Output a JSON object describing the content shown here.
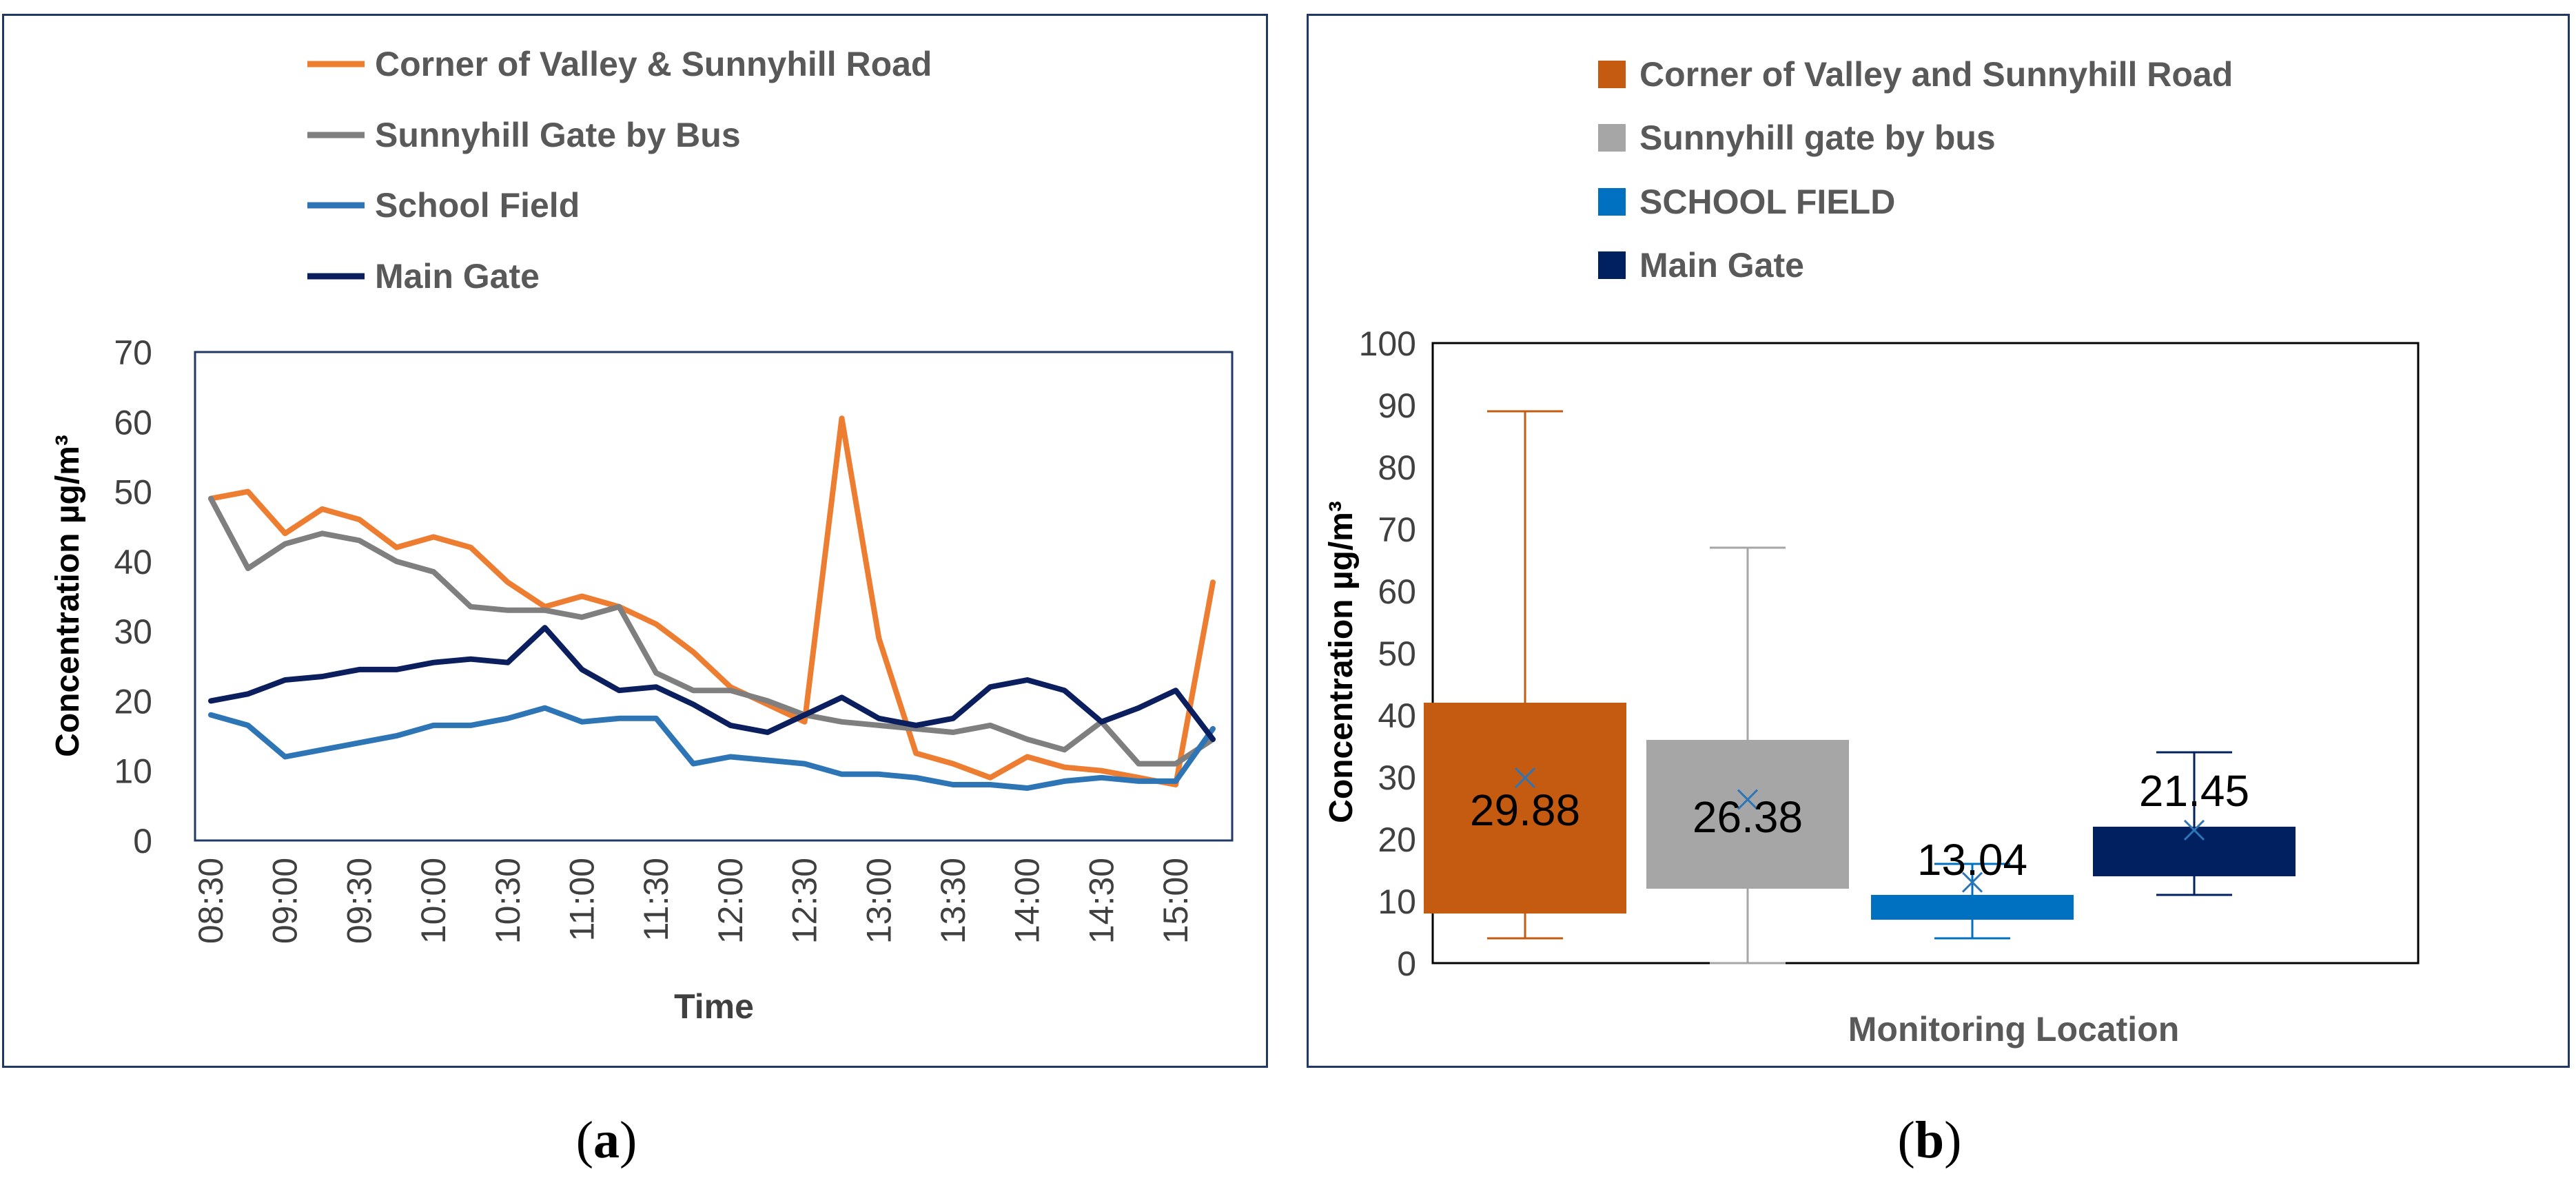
{
  "panels": {
    "a": {
      "caption_open": "(",
      "caption_letter": "a",
      "caption_close": ")"
    },
    "b": {
      "caption_open": "(",
      "caption_letter": "b",
      "caption_close": ")"
    }
  },
  "chart_data": [
    {
      "type": "line",
      "title": "",
      "xlabel": "Time",
      "ylabel": "Concentration  µg/m³",
      "ylim": [
        0,
        70
      ],
      "yticks": [
        0,
        10,
        20,
        30,
        40,
        50,
        60,
        70
      ],
      "x": [
        "08:30",
        "08:45",
        "09:00",
        "09:15",
        "09:30",
        "09:45",
        "10:00",
        "10:15",
        "10:30",
        "10:45",
        "11:00",
        "11:15",
        "11:30",
        "11:45",
        "12:00",
        "12:15",
        "12:30",
        "12:45",
        "13:00",
        "13:15",
        "13:30",
        "13:45",
        "14:00",
        "14:15",
        "14:30",
        "14:45",
        "15:00",
        "15:15"
      ],
      "xtick_labels": [
        "08:30",
        "09:00",
        "09:30",
        "10:00",
        "10:30",
        "11:00",
        "11:30",
        "12:00",
        "12:30",
        "13:00",
        "13:30",
        "14:00",
        "14:30",
        "15:00"
      ],
      "legend_position": "top",
      "series": [
        {
          "name": "Corner of Valley & Sunnyhill Road",
          "color": "#ed7d31",
          "values": [
            49,
            50,
            44,
            47.5,
            46,
            42,
            43.5,
            42,
            37,
            33.5,
            35,
            33.5,
            31,
            27,
            22,
            19.5,
            17,
            60.5,
            29,
            12.5,
            11,
            9,
            12,
            10.5,
            10,
            9,
            8,
            37
          ]
        },
        {
          "name": "Sunnyhill  Gate by Bus",
          "color": "#7f7f7f",
          "values": [
            49,
            39,
            42.5,
            44,
            43,
            40,
            38.5,
            33.5,
            33,
            33,
            32,
            33.5,
            24,
            21.5,
            21.5,
            20,
            18,
            17,
            16.5,
            16,
            15.5,
            16.5,
            14.5,
            13,
            17,
            11,
            11,
            14.5
          ]
        },
        {
          "name": "School Field",
          "color": "#2e75b6",
          "values": [
            18,
            16.5,
            12,
            13,
            14,
            15,
            16.5,
            16.5,
            17.5,
            19,
            17,
            17.5,
            17.5,
            11,
            12,
            11.5,
            11,
            9.5,
            9.5,
            9,
            8,
            8,
            7.5,
            8.5,
            9,
            8.5,
            8.5,
            16
          ]
        },
        {
          "name": "Main Gate",
          "color": "#0b1f5e",
          "values": [
            20,
            21,
            23,
            23.5,
            24.5,
            24.5,
            25.5,
            26,
            25.5,
            30.5,
            24.5,
            21.5,
            22,
            19.5,
            16.5,
            15.5,
            18,
            20.5,
            17.5,
            16.5,
            17.5,
            22,
            23,
            21.5,
            17,
            19,
            21.5,
            14.5
          ]
        }
      ]
    },
    {
      "type": "box",
      "title": "",
      "xlabel": "Monitoring Location",
      "ylabel": "Concentration  µg/m³",
      "ylim": [
        0,
        100
      ],
      "yticks": [
        0,
        10,
        20,
        30,
        40,
        50,
        60,
        70,
        80,
        90,
        100
      ],
      "legend_position": "top",
      "series": [
        {
          "name": "Corner of Valley and Sunnyhill Road",
          "color": "#c55a11",
          "min": 4,
          "q1": 8,
          "q3": 42,
          "max": 89,
          "mean_label": "29.88",
          "mean": 29.88
        },
        {
          "name": "Sunnyhill gate by bus",
          "color": "#a6a6a6",
          "min": 0,
          "q1": 12,
          "q3": 36,
          "max": 67,
          "mean_label": "26.38",
          "mean": 26.38
        },
        {
          "name": "SCHOOL FIELD",
          "color": "#0070c0",
          "min": 4,
          "q1": 7,
          "q3": 11,
          "max": 16,
          "mean_label": "13.04",
          "mean": 13.04
        },
        {
          "name": "Main Gate",
          "color": "#002060",
          "min": 11,
          "q1": 14,
          "q3": 22,
          "max": 34,
          "mean_label": "21.45",
          "mean": 21.45
        }
      ]
    }
  ]
}
